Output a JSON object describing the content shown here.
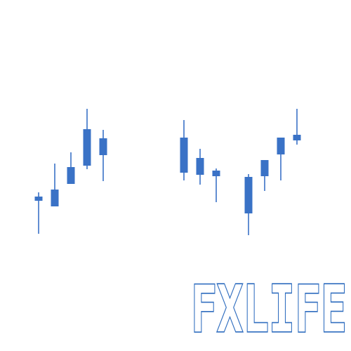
{
  "logo": {
    "wordmark": "FXLIFE",
    "color": "#3a72c6",
    "outline_color": "#2f6dbf",
    "background": "#ffffff",
    "candles": [
      {
        "open": 0.44,
        "close": 0.428,
        "high": 0.452,
        "low": 0.334
      },
      {
        "open": 0.412,
        "close": 0.46,
        "high": 0.534,
        "low": 0.412
      },
      {
        "open": 0.476,
        "close": 0.524,
        "high": 0.566,
        "low": 0.476
      },
      {
        "open": 0.528,
        "close": 0.632,
        "high": 0.69,
        "low": 0.518
      },
      {
        "open": 0.606,
        "close": 0.558,
        "high": 0.63,
        "low": 0.484
      },
      null,
      null,
      null,
      null,
      {
        "open": 0.608,
        "close": 0.508,
        "high": 0.658,
        "low": 0.486
      },
      {
        "open": 0.55,
        "close": 0.502,
        "high": 0.576,
        "low": 0.474
      },
      {
        "open": 0.514,
        "close": 0.498,
        "high": 0.52,
        "low": 0.424
      },
      null,
      {
        "open": 0.496,
        "close": 0.392,
        "high": 0.504,
        "low": 0.33
      },
      {
        "open": 0.498,
        "close": 0.544,
        "high": 0.544,
        "low": 0.456
      },
      {
        "open": 0.56,
        "close": 0.608,
        "high": 0.608,
        "low": 0.486
      },
      {
        "open": 0.616,
        "close": 0.6,
        "high": 0.69,
        "low": 0.588
      }
    ]
  }
}
